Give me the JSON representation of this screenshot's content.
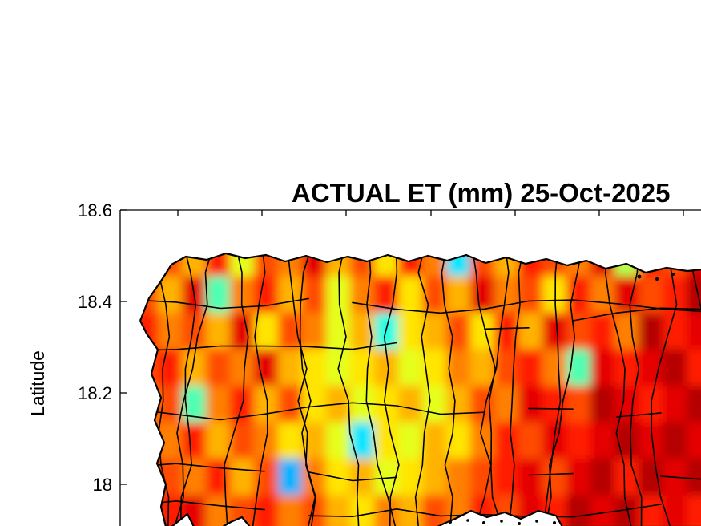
{
  "chart_data": {
    "type": "heatmap",
    "title": "ACTUAL ET (mm) 25-Oct-2025",
    "xlabel": "",
    "ylabel": "Latitude",
    "ytick_labels": [
      "18.6",
      "18.4",
      "18.2",
      "18"
    ],
    "yticks": [
      18.6,
      18.4,
      18.2,
      18.0
    ],
    "ylim_visible": [
      17.92,
      18.6
    ],
    "colormap": "jet",
    "legend_position": "none-visible",
    "region_note": "Map of Puerto Rico with black municipality boundary outlines; warm jet colors (orange/red) dominate with scattered yellow patches and isolated cyan/blue low-ET spots; east end darkest red",
    "grid": {
      "rows": 8,
      "cols": 24,
      "value_note": "normalized ET intensity 0-1 (jet colormap), estimated from pixel colors, row 0 = north",
      "values": [
        [
          0.75,
          0.8,
          0.7,
          0.85,
          0.6,
          0.8,
          0.75,
          0.9,
          0.7,
          0.8,
          0.65,
          0.85,
          0.75,
          0.35,
          0.8,
          0.7,
          0.85,
          0.8,
          0.75,
          0.9,
          0.55,
          0.85,
          0.8,
          0.9
        ],
        [
          0.8,
          0.7,
          0.9,
          0.45,
          0.75,
          0.85,
          0.7,
          0.8,
          0.6,
          0.75,
          0.85,
          0.65,
          0.8,
          0.7,
          0.9,
          0.75,
          0.8,
          0.65,
          0.85,
          0.75,
          0.9,
          0.8,
          0.85,
          0.95
        ],
        [
          0.85,
          0.75,
          0.8,
          0.7,
          0.9,
          0.65,
          0.8,
          0.75,
          0.6,
          0.7,
          0.4,
          0.65,
          0.7,
          0.8,
          0.65,
          0.85,
          0.7,
          0.9,
          0.8,
          0.85,
          0.75,
          0.95,
          0.85,
          0.9
        ],
        [
          0.8,
          0.85,
          0.7,
          0.8,
          0.75,
          0.9,
          0.7,
          0.65,
          0.6,
          0.65,
          0.7,
          0.6,
          0.65,
          0.75,
          0.7,
          0.8,
          0.85,
          0.75,
          0.45,
          0.9,
          0.85,
          0.9,
          0.95,
          0.85
        ],
        [
          0.75,
          0.8,
          0.45,
          0.75,
          0.85,
          0.7,
          0.8,
          0.65,
          0.7,
          0.6,
          0.65,
          0.7,
          0.6,
          0.7,
          0.8,
          0.75,
          0.9,
          0.85,
          0.8,
          0.95,
          0.9,
          0.85,
          0.9,
          0.95
        ],
        [
          0.8,
          0.75,
          0.85,
          0.7,
          0.8,
          0.75,
          0.65,
          0.7,
          0.6,
          0.35,
          0.65,
          0.6,
          0.7,
          0.65,
          0.75,
          0.85,
          0.8,
          0.9,
          0.85,
          0.9,
          0.95,
          0.9,
          0.95,
          0.9
        ],
        [
          0.85,
          0.8,
          0.75,
          0.85,
          0.7,
          0.8,
          0.3,
          0.75,
          0.65,
          0.7,
          0.6,
          0.65,
          0.7,
          0.75,
          0.8,
          0.85,
          0.9,
          0.8,
          0.9,
          0.95,
          0.85,
          0.95,
          0.9,
          0.95
        ],
        [
          0.8,
          0.85,
          0.9,
          0.75,
          0.8,
          0.85,
          0.75,
          0.8,
          0.7,
          0.65,
          0.75,
          0.7,
          0.8,
          0.75,
          0.85,
          0.8,
          0.9,
          0.85,
          0.95,
          0.9,
          0.95,
          0.85,
          0.9,
          0.85
        ]
      ]
    }
  }
}
